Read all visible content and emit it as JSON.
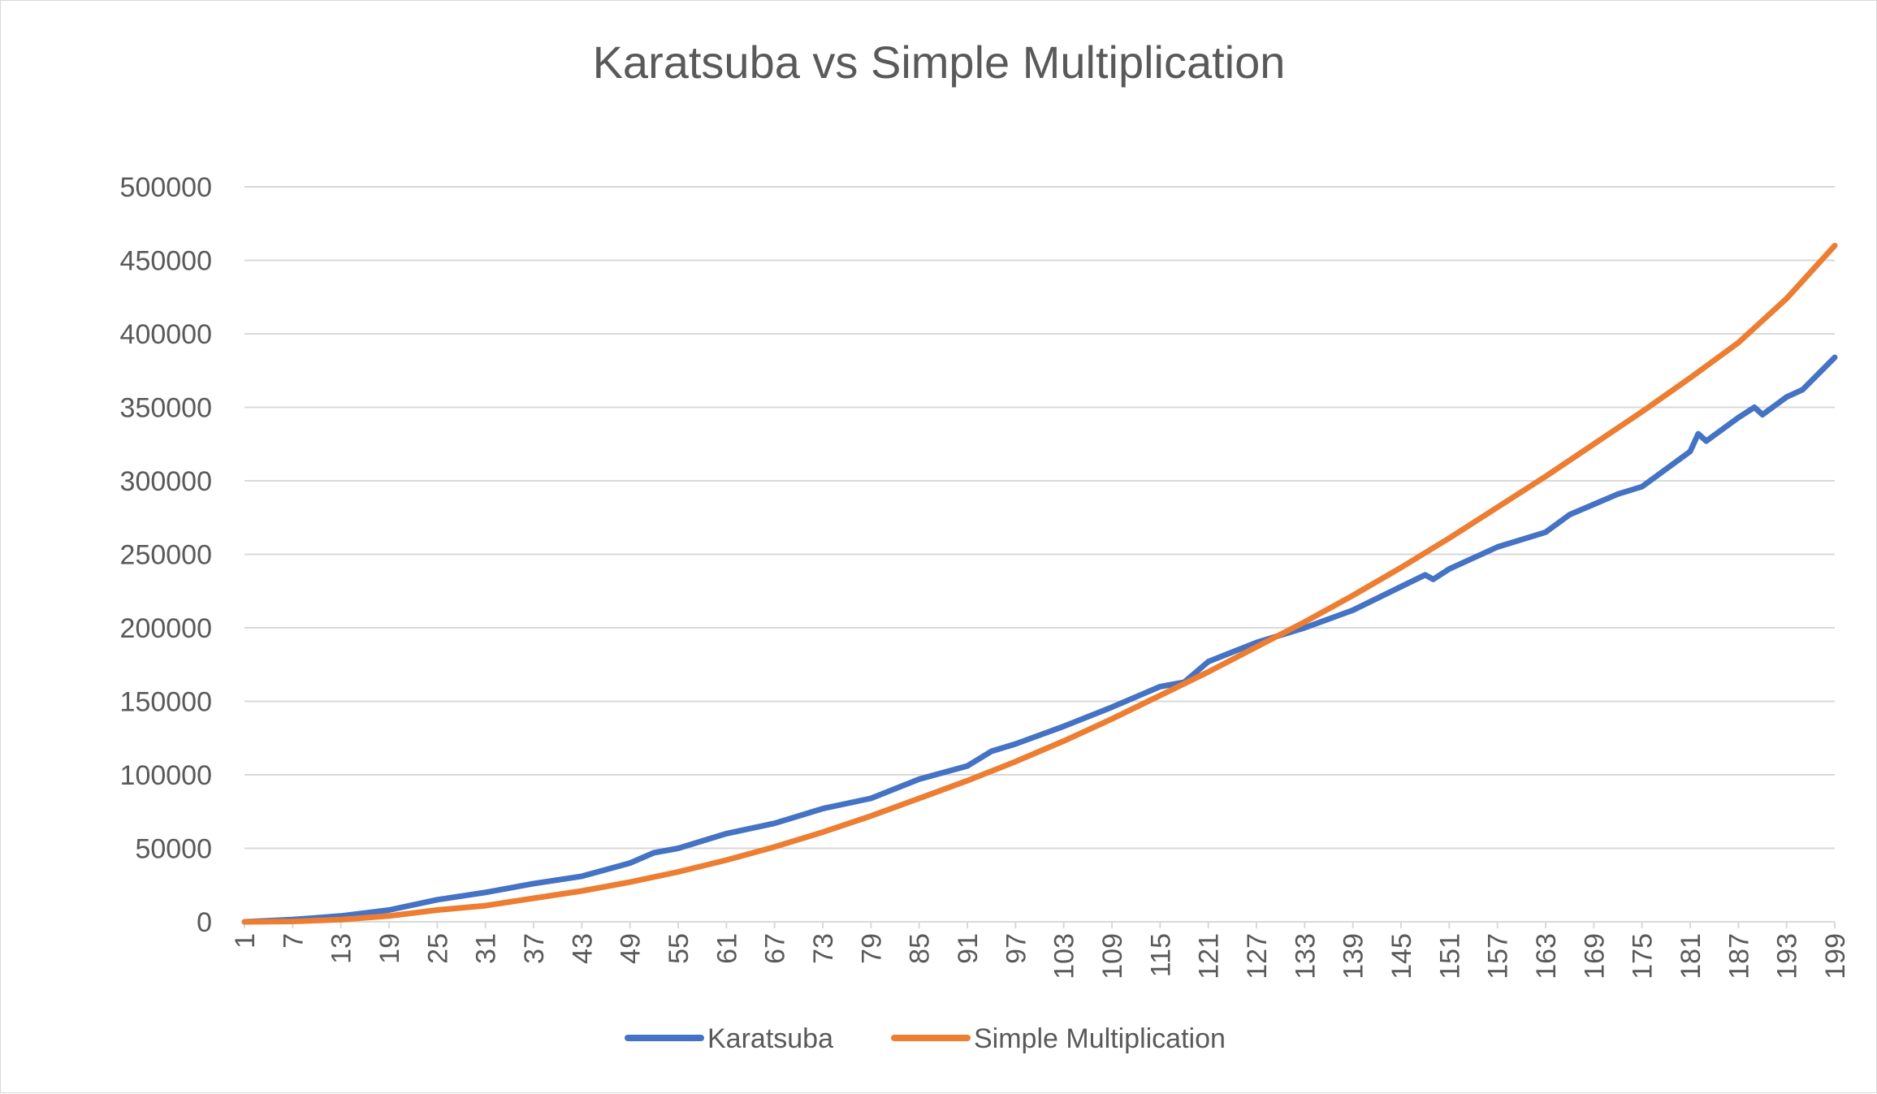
{
  "chart_data": {
    "type": "line",
    "title": "Karatsuba vs Simple Multiplication",
    "xlabel": "",
    "ylabel": "",
    "ylim": [
      0,
      500000
    ],
    "y_ticks": [
      "0",
      "50000",
      "100000",
      "150000",
      "200000",
      "250000",
      "300000",
      "350000",
      "400000",
      "450000",
      "500000"
    ],
    "x_range": [
      1,
      199
    ],
    "x_tick_labels": [
      "1",
      "7",
      "13",
      "19",
      "25",
      "31",
      "37",
      "43",
      "49",
      "55",
      "61",
      "67",
      "73",
      "79",
      "85",
      "91",
      "97",
      "103",
      "109",
      "115",
      "121",
      "127",
      "133",
      "139",
      "145",
      "151",
      "157",
      "163",
      "169",
      "175",
      "181",
      "187",
      "193",
      "199"
    ],
    "grid": "horizontal",
    "legend_position": "bottom",
    "series": [
      {
        "name": "Karatsuba",
        "color": "#4472C4",
        "x": [
          1,
          7,
          13,
          19,
          25,
          31,
          37,
          43,
          49,
          52,
          55,
          61,
          67,
          73,
          79,
          85,
          91,
          94,
          97,
          103,
          109,
          115,
          118,
          121,
          127,
          133,
          139,
          145,
          148,
          149,
          151,
          157,
          163,
          166,
          169,
          172,
          175,
          181,
          182,
          183,
          187,
          189,
          190,
          193,
          195,
          199
        ],
        "y": [
          0,
          1500,
          4000,
          8000,
          15000,
          20000,
          26000,
          31000,
          40000,
          47000,
          50000,
          60000,
          67000,
          77000,
          84000,
          97000,
          106000,
          116000,
          121000,
          133000,
          146000,
          160000,
          163000,
          177000,
          190000,
          200000,
          212000,
          228000,
          236000,
          233000,
          240000,
          255000,
          265000,
          277000,
          284000,
          291000,
          296000,
          320000,
          332000,
          327000,
          343000,
          350000,
          345000,
          357000,
          362000,
          384000
        ]
      },
      {
        "name": "Simple Multiplication",
        "color": "#ED7D31",
        "x": [
          1,
          7,
          13,
          19,
          25,
          31,
          37,
          43,
          49,
          55,
          61,
          67,
          73,
          79,
          85,
          91,
          97,
          103,
          109,
          115,
          121,
          127,
          133,
          139,
          145,
          151,
          157,
          163,
          169,
          175,
          181,
          187,
          193,
          199
        ],
        "y": [
          0,
          300,
          1500,
          4000,
          8000,
          11000,
          16000,
          21000,
          27000,
          34000,
          42000,
          51000,
          61000,
          72000,
          84000,
          96000,
          109000,
          123000,
          138000,
          154000,
          170000,
          187000,
          204000,
          222000,
          241000,
          261000,
          282000,
          303000,
          325000,
          347000,
          370000,
          394000,
          424000,
          460000
        ]
      }
    ]
  }
}
